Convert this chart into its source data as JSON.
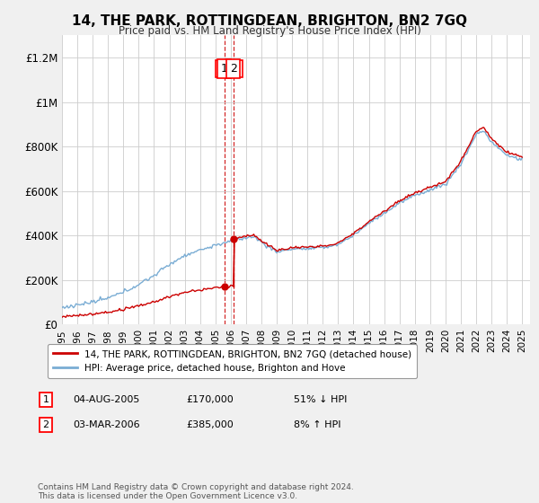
{
  "title": "14, THE PARK, ROTTINGDEAN, BRIGHTON, BN2 7GQ",
  "subtitle": "Price paid vs. HM Land Registry's House Price Index (HPI)",
  "background_color": "#f0f0f0",
  "plot_bg_color": "#ffffff",
  "legend_label_red": "14, THE PARK, ROTTINGDEAN, BRIGHTON, BN2 7GQ (detached house)",
  "legend_label_blue": "HPI: Average price, detached house, Brighton and Hove",
  "footer": "Contains HM Land Registry data © Crown copyright and database right 2024.\nThis data is licensed under the Open Government Licence v3.0.",
  "annotation1_label": "1",
  "annotation1_date": "04-AUG-2005",
  "annotation1_price": "£170,000",
  "annotation1_hpi": "51% ↓ HPI",
  "annotation2_label": "2",
  "annotation2_date": "03-MAR-2006",
  "annotation2_price": "£385,000",
  "annotation2_hpi": "8% ↑ HPI",
  "ylim": [
    0,
    1300000
  ],
  "yticks": [
    0,
    200000,
    400000,
    600000,
    800000,
    1000000,
    1200000
  ],
  "ytick_labels": [
    "£0",
    "£200K",
    "£400K",
    "£600K",
    "£800K",
    "£1M",
    "£1.2M"
  ],
  "red_color": "#cc0000",
  "blue_color": "#7aadd4",
  "sale1_t": 2005.583,
  "sale1_y": 170000,
  "sale2_t": 2006.167,
  "sale2_y": 385000,
  "xmin": 1995,
  "xmax": 2025.5
}
